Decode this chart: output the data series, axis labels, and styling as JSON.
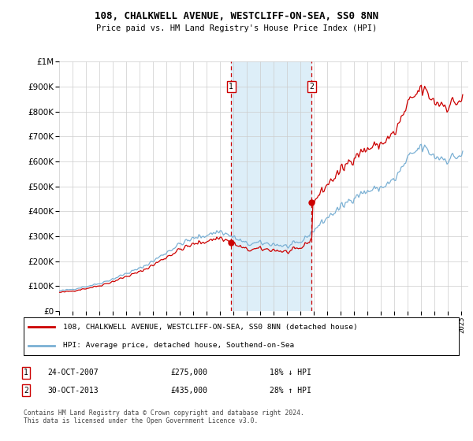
{
  "title": "108, CHALKWELL AVENUE, WESTCLIFF-ON-SEA, SS0 8NN",
  "subtitle": "Price paid vs. HM Land Registry's House Price Index (HPI)",
  "legend_line1": "108, CHALKWELL AVENUE, WESTCLIFF-ON-SEA, SS0 8NN (detached house)",
  "legend_line2": "HPI: Average price, detached house, Southend-on-Sea",
  "transaction1_date": "24-OCT-2007",
  "transaction1_price": "£275,000",
  "transaction1_hpi": "18% ↓ HPI",
  "transaction2_date": "30-OCT-2013",
  "transaction2_price": "£435,000",
  "transaction2_hpi": "28% ↑ HPI",
  "footer": "Contains HM Land Registry data © Crown copyright and database right 2024.\nThis data is licensed under the Open Government Licence v3.0.",
  "hpi_annual": [
    1995,
    1996,
    1997,
    1998,
    1999,
    2000,
    2001,
    2002,
    2003,
    2004,
    2005,
    2006,
    2007,
    2008,
    2009,
    2010,
    2011,
    2012,
    2013,
    2014,
    2015,
    2016,
    2017,
    2018,
    2019,
    2020,
    2021,
    2022,
    2023,
    2024,
    2025
  ],
  "hpi_annual_vals": [
    80000,
    87000,
    98000,
    110000,
    128000,
    150000,
    170000,
    200000,
    235000,
    268000,
    290000,
    305000,
    320000,
    295000,
    268000,
    272000,
    268000,
    258000,
    275000,
    325000,
    375000,
    415000,
    460000,
    480000,
    495000,
    525000,
    610000,
    660000,
    620000,
    610000,
    625000
  ],
  "transaction1_x": 2007.82,
  "transaction2_x": 2013.82,
  "transaction1_val": 275000,
  "transaction2_val": 435000,
  "shade_color": "#ddeef8",
  "line_color_red": "#cc0000",
  "line_color_blue": "#7ab0d4",
  "bg_color": "#ffffff",
  "grid_color": "#cccccc",
  "ylim_max": 1000000,
  "xlim_min": 1995,
  "xlim_max": 2025.5,
  "xlabel_years": [
    1995,
    1996,
    1997,
    1998,
    1999,
    2000,
    2001,
    2002,
    2003,
    2004,
    2005,
    2006,
    2007,
    2008,
    2009,
    2010,
    2011,
    2012,
    2013,
    2014,
    2015,
    2016,
    2017,
    2018,
    2019,
    2020,
    2021,
    2022,
    2023,
    2024,
    2025
  ],
  "noise_seed": 42,
  "noise_scale": 0.025
}
